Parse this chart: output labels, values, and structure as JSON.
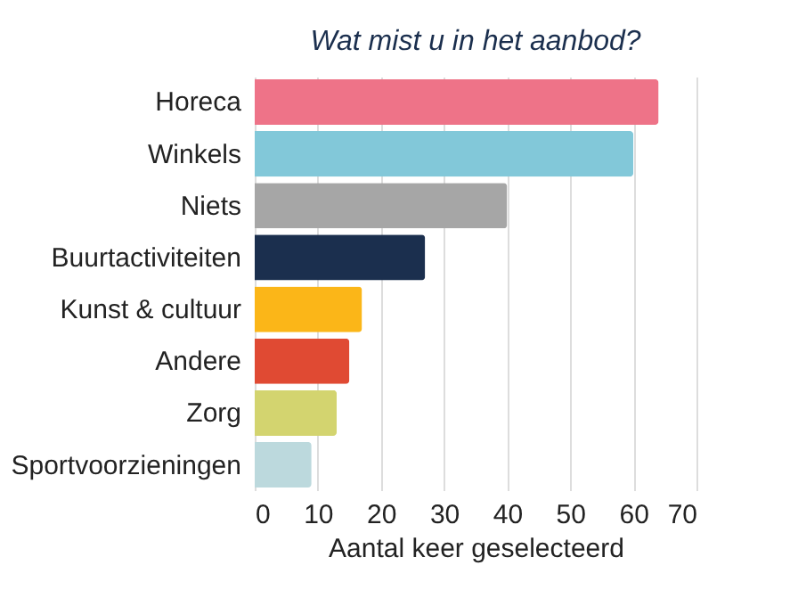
{
  "chart_data": {
    "type": "bar",
    "orientation": "horizontal",
    "title": "Wat mist u in het aanbod?",
    "xlabel": "Aantal keer geselecteerd",
    "categories": [
      "Horeca",
      "Winkels",
      "Niets",
      "Buurtactiviteiten",
      "Kunst & cultuur",
      "Andere",
      "Zorg",
      "Sportvoorzieningen"
    ],
    "values": [
      64,
      60,
      40,
      27,
      17,
      15,
      13,
      9
    ],
    "colors": [
      "#ee7388",
      "#82c8d9",
      "#a6a6a6",
      "#1b2f4e",
      "#fbb618",
      "#e04a33",
      "#d3d46f",
      "#bcd9dd"
    ],
    "xlim": [
      0,
      70
    ],
    "xticks": [
      0,
      10,
      20,
      30,
      40,
      50,
      60,
      70
    ],
    "grid": "x"
  }
}
